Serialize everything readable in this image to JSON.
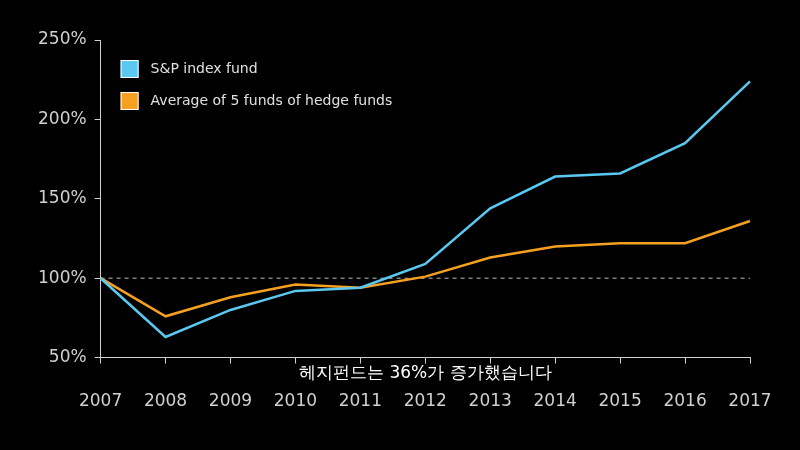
{
  "chart_data": {
    "type": "line",
    "categories": [
      "2007",
      "2008",
      "2009",
      "2010",
      "2011",
      "2012",
      "2013",
      "2014",
      "2015",
      "2016",
      "2017"
    ],
    "series": [
      {
        "name": "S&P index fund",
        "color": "#5ac8f0",
        "values": [
          100,
          63,
          80,
          92,
          94,
          109,
          144,
          164,
          166,
          185,
          224
        ]
      },
      {
        "name": "Average of 5 funds of hedge funds",
        "color": "#f5a020",
        "values": [
          100,
          76,
          88,
          96,
          94,
          101,
          113,
          120,
          122,
          122,
          136
        ]
      }
    ],
    "ylim": [
      50,
      250
    ],
    "yticks": [
      {
        "value": 50,
        "label": "50%"
      },
      {
        "value": 100,
        "label": "100%"
      },
      {
        "value": 150,
        "label": "150%"
      },
      {
        "value": 200,
        "label": "200%"
      },
      {
        "value": 250,
        "label": "250%"
      }
    ],
    "reference_line": {
      "y": 100,
      "line_style": "dashed"
    },
    "annotations": [
      {
        "text": "헤지펀드는 36%가 증가했습니다"
      }
    ],
    "grid": false,
    "legend": "upper left"
  }
}
